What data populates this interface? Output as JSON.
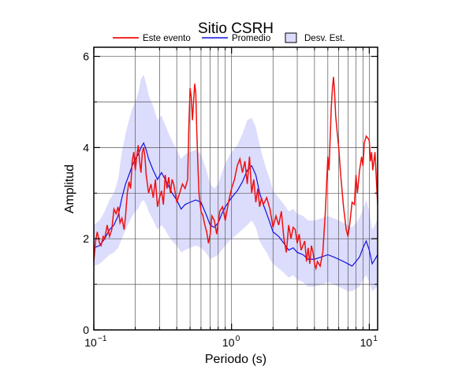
{
  "chart_data": {
    "type": "line",
    "title": "Sitio CSRH",
    "xlabel": "Periodo (s)",
    "ylabel": "Amplitud",
    "x_scale": "log",
    "xlim": [
      0.1,
      11.5
    ],
    "ylim": [
      0,
      6.2
    ],
    "x_major_ticks": [
      {
        "value": 0.1,
        "base": "10",
        "exp": "−1"
      },
      {
        "value": 1,
        "base": "10",
        "exp": "0"
      },
      {
        "value": 10,
        "base": "10",
        "exp": "1"
      }
    ],
    "y_ticks": [
      {
        "value": 0,
        "label": "0"
      },
      {
        "value": 2,
        "label": "2"
      },
      {
        "value": 4,
        "label": "4"
      },
      {
        "value": 6,
        "label": "6"
      }
    ],
    "grid": true,
    "legend_position": "top",
    "legend": [
      {
        "label": "Este evento",
        "kind": "line",
        "color": "#ee1111"
      },
      {
        "label": "Promedio",
        "kind": "line",
        "color": "#1111dd"
      },
      {
        "label": "Desv. Est.",
        "kind": "patch",
        "color": "#dcdcfd"
      }
    ],
    "colors": {
      "event": "#ee1111",
      "mean": "#1111dd",
      "band": "#dcdcfd"
    },
    "series": [
      {
        "name": "Este evento",
        "kind": "line",
        "x": [
          0.1,
          0.103,
          0.106,
          0.11,
          0.113,
          0.117,
          0.12,
          0.125,
          0.13,
          0.135,
          0.14,
          0.145,
          0.15,
          0.155,
          0.16,
          0.166,
          0.17,
          0.175,
          0.18,
          0.185,
          0.19,
          0.195,
          0.2,
          0.205,
          0.21,
          0.215,
          0.22,
          0.225,
          0.23,
          0.235,
          0.24,
          0.25,
          0.26,
          0.27,
          0.28,
          0.29,
          0.3,
          0.31,
          0.32,
          0.33,
          0.34,
          0.35,
          0.36,
          0.37,
          0.38,
          0.39,
          0.4,
          0.42,
          0.44,
          0.46,
          0.48,
          0.49,
          0.5,
          0.51,
          0.52,
          0.53,
          0.54,
          0.55,
          0.56,
          0.57,
          0.58,
          0.6,
          0.62,
          0.64,
          0.66,
          0.68,
          0.7,
          0.72,
          0.75,
          0.78,
          0.82,
          0.86,
          0.9,
          0.95,
          1.0,
          1.05,
          1.1,
          1.15,
          1.2,
          1.25,
          1.3,
          1.35,
          1.4,
          1.45,
          1.5,
          1.55,
          1.6,
          1.65,
          1.7,
          1.8,
          1.9,
          2.0,
          2.1,
          2.2,
          2.3,
          2.4,
          2.5,
          2.6,
          2.7,
          2.8,
          2.9,
          3.0,
          3.1,
          3.2,
          3.3,
          3.4,
          3.5,
          3.6,
          3.7,
          3.8,
          3.9,
          4.0,
          4.1,
          4.2,
          4.4,
          4.6,
          4.8,
          5.0,
          5.1,
          5.2,
          5.3,
          5.4,
          5.5,
          5.6,
          5.7,
          5.8,
          6.0,
          6.2,
          6.5,
          6.8,
          7.0,
          7.2,
          7.5,
          7.8,
          8.0,
          8.2,
          8.5,
          8.8,
          9.0,
          9.2,
          9.5,
          9.8,
          10.0,
          10.2,
          10.4,
          10.6,
          10.8,
          11.0,
          11.3,
          11.5
        ],
        "y": [
          1.5,
          1.95,
          2.15,
          1.9,
          1.85,
          2.05,
          2.0,
          2.3,
          2.05,
          2.2,
          2.65,
          2.55,
          2.7,
          2.35,
          2.45,
          2.2,
          2.5,
          3.0,
          3.25,
          3.1,
          3.7,
          3.9,
          3.5,
          3.8,
          4.05,
          3.7,
          3.45,
          3.9,
          4.0,
          3.8,
          3.4,
          3.0,
          3.2,
          2.9,
          3.3,
          2.7,
          2.9,
          3.05,
          2.75,
          3.4,
          3.1,
          3.35,
          3.0,
          3.3,
          3.2,
          3.0,
          2.8,
          3.0,
          3.2,
          3.1,
          3.3,
          4.5,
          5.3,
          5.1,
          4.6,
          5.0,
          5.4,
          5.2,
          4.3,
          3.6,
          3.0,
          2.6,
          2.5,
          2.3,
          2.15,
          1.9,
          2.1,
          2.5,
          2.4,
          2.1,
          2.6,
          2.7,
          2.4,
          2.8,
          3.1,
          3.3,
          3.6,
          3.75,
          3.45,
          3.7,
          3.2,
          3.8,
          3.0,
          3.3,
          2.8,
          3.1,
          2.7,
          2.9,
          2.75,
          2.9,
          2.65,
          2.25,
          2.5,
          2.3,
          2.6,
          2.0,
          1.7,
          2.3,
          2.0,
          2.25,
          2.2,
          1.9,
          2.1,
          1.75,
          1.85,
          1.95,
          1.5,
          1.8,
          1.45,
          1.85,
          1.7,
          1.45,
          1.35,
          1.5,
          1.4,
          1.7,
          2.6,
          3.8,
          3.5,
          4.2,
          4.9,
          5.3,
          5.55,
          5.2,
          4.7,
          4.45,
          4.0,
          3.4,
          2.7,
          2.2,
          2.05,
          2.3,
          2.8,
          2.75,
          3.4,
          3.0,
          3.5,
          3.8,
          3.6,
          4.1,
          4.25,
          4.2,
          4.15,
          3.7,
          3.9,
          3.5,
          3.7,
          3.9,
          3.2,
          2.75
        ]
      },
      {
        "name": "Promedio",
        "kind": "line",
        "x": [
          0.1,
          0.11,
          0.12,
          0.13,
          0.14,
          0.15,
          0.16,
          0.17,
          0.18,
          0.19,
          0.2,
          0.21,
          0.22,
          0.23,
          0.24,
          0.25,
          0.27,
          0.29,
          0.31,
          0.33,
          0.35,
          0.37,
          0.4,
          0.43,
          0.46,
          0.5,
          0.55,
          0.6,
          0.65,
          0.7,
          0.75,
          0.8,
          0.85,
          0.9,
          1.0,
          1.1,
          1.2,
          1.3,
          1.4,
          1.5,
          1.6,
          1.7,
          1.8,
          1.9,
          2.0,
          2.2,
          2.4,
          2.6,
          2.8,
          3.0,
          3.3,
          3.6,
          4.0,
          4.5,
          5.0,
          5.5,
          6.0,
          6.5,
          7.0,
          7.5,
          8.0,
          8.5,
          9.0,
          9.5,
          10.0,
          10.5,
          11.0,
          11.5
        ],
        "y": [
          1.8,
          1.85,
          2.0,
          2.2,
          2.3,
          2.5,
          2.9,
          3.2,
          3.4,
          3.6,
          3.75,
          3.85,
          4.0,
          4.1,
          3.95,
          3.75,
          3.5,
          3.3,
          3.45,
          3.3,
          3.15,
          3.0,
          2.85,
          2.65,
          2.75,
          2.8,
          2.85,
          2.8,
          2.55,
          2.3,
          2.25,
          2.35,
          2.55,
          2.7,
          2.9,
          3.05,
          3.25,
          3.5,
          3.6,
          3.4,
          3.0,
          2.75,
          2.55,
          2.35,
          2.15,
          2.05,
          1.9,
          1.75,
          1.8,
          1.7,
          1.65,
          1.55,
          1.55,
          1.6,
          1.65,
          1.6,
          1.55,
          1.5,
          1.45,
          1.4,
          1.5,
          1.6,
          1.8,
          1.95,
          1.75,
          1.45,
          1.55,
          1.65
        ]
      },
      {
        "name": "Desv. Est.",
        "kind": "band",
        "x": [
          0.1,
          0.11,
          0.12,
          0.13,
          0.14,
          0.15,
          0.16,
          0.17,
          0.18,
          0.19,
          0.2,
          0.21,
          0.22,
          0.23,
          0.24,
          0.25,
          0.27,
          0.29,
          0.31,
          0.33,
          0.35,
          0.37,
          0.4,
          0.43,
          0.46,
          0.5,
          0.55,
          0.6,
          0.65,
          0.7,
          0.75,
          0.8,
          0.85,
          0.9,
          1.0,
          1.1,
          1.2,
          1.3,
          1.4,
          1.5,
          1.6,
          1.7,
          1.8,
          1.9,
          2.0,
          2.2,
          2.4,
          2.6,
          2.8,
          3.0,
          3.3,
          3.6,
          4.0,
          4.5,
          5.0,
          5.5,
          6.0,
          6.5,
          7.0,
          7.5,
          8.0,
          8.5,
          9.0,
          9.5,
          10.0,
          10.5,
          11.0,
          11.5
        ],
        "lower": [
          1.4,
          1.45,
          1.55,
          1.65,
          1.7,
          1.8,
          2.0,
          2.2,
          2.35,
          2.5,
          2.6,
          2.65,
          2.8,
          2.85,
          2.75,
          2.6,
          2.4,
          2.2,
          2.3,
          2.2,
          2.05,
          1.95,
          1.85,
          1.7,
          1.75,
          1.8,
          1.85,
          1.8,
          1.7,
          1.55,
          1.6,
          1.65,
          1.75,
          1.85,
          2.0,
          2.1,
          2.2,
          2.3,
          2.4,
          2.25,
          1.95,
          1.8,
          1.7,
          1.55,
          1.45,
          1.35,
          1.25,
          1.15,
          1.2,
          1.1,
          1.05,
          0.95,
          0.95,
          1.0,
          1.05,
          1.0,
          0.95,
          0.9,
          0.85,
          0.85,
          0.9,
          0.95,
          1.1,
          1.2,
          1.05,
          0.85,
          0.9,
          0.95
        ],
        "upper": [
          2.3,
          2.4,
          2.6,
          2.85,
          3.0,
          3.3,
          3.9,
          4.3,
          4.6,
          4.85,
          5.0,
          5.2,
          5.5,
          5.6,
          5.4,
          5.15,
          4.9,
          4.6,
          4.7,
          4.5,
          4.3,
          4.15,
          3.95,
          3.75,
          3.85,
          3.9,
          3.95,
          3.85,
          3.55,
          3.2,
          3.1,
          3.2,
          3.45,
          3.65,
          3.9,
          4.05,
          4.3,
          4.6,
          4.65,
          4.45,
          4.05,
          3.75,
          3.5,
          3.3,
          3.05,
          2.9,
          2.75,
          2.6,
          2.65,
          2.55,
          2.5,
          2.4,
          2.4,
          2.45,
          2.5,
          2.45,
          2.4,
          2.35,
          2.3,
          2.25,
          2.35,
          2.45,
          2.65,
          2.85,
          2.6,
          2.2,
          2.3,
          2.45
        ]
      }
    ]
  }
}
